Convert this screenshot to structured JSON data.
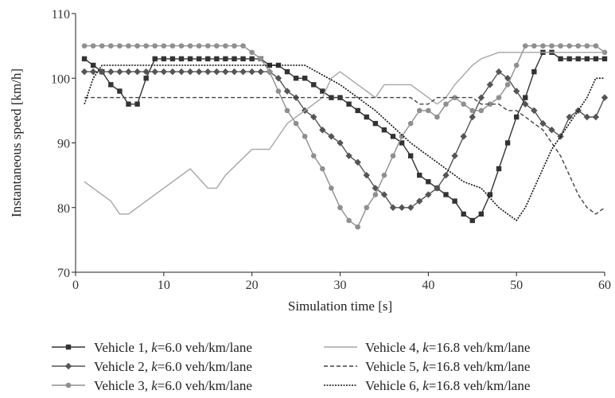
{
  "chart_data": {
    "type": "line",
    "xlabel": "Simulation time [s]",
    "ylabel": "Instantaneous speed [km/h]",
    "xlim": [
      0,
      60
    ],
    "ylim": [
      70,
      110
    ],
    "xticks": [
      0,
      10,
      20,
      30,
      40,
      50,
      60
    ],
    "yticks": [
      70,
      80,
      90,
      100,
      110
    ],
    "grid": false,
    "legend_position": "bottom",
    "series": [
      {
        "name": "Vehicle 1, ",
        "name_k": "k",
        "name_rest": "=6.0 veh/km/lane",
        "color": "#333333",
        "marker": "square",
        "dash": "solid",
        "x": [
          1,
          2,
          3,
          4,
          5,
          6,
          7,
          8,
          9,
          10,
          11,
          12,
          13,
          14,
          15,
          16,
          17,
          18,
          19,
          20,
          21,
          22,
          23,
          24,
          25,
          26,
          27,
          28,
          29,
          30,
          31,
          32,
          33,
          34,
          35,
          36,
          37,
          38,
          39,
          40,
          41,
          42,
          43,
          44,
          45,
          46,
          47,
          48,
          49,
          50,
          51,
          52,
          53,
          54,
          55,
          56,
          57,
          58,
          59,
          60
        ],
        "y": [
          103,
          102,
          101,
          99,
          98,
          96,
          96,
          100,
          103,
          103,
          103,
          103,
          103,
          103,
          103,
          103,
          103,
          103,
          103,
          103,
          103,
          102,
          102,
          101,
          100,
          100,
          99,
          98,
          97,
          97,
          96,
          95,
          94,
          93,
          92,
          91,
          90,
          88,
          85,
          84,
          83,
          82,
          81,
          79,
          78,
          79,
          82,
          86,
          90,
          94,
          97,
          101,
          104,
          104,
          103,
          103,
          103,
          103,
          103,
          103
        ]
      },
      {
        "name": "Vehicle 2, ",
        "name_k": "k",
        "name_rest": "=6.0 veh/km/lane",
        "color": "#555555",
        "marker": "diamond",
        "dash": "solid",
        "x": [
          1,
          2,
          3,
          4,
          5,
          6,
          7,
          8,
          9,
          10,
          11,
          12,
          13,
          14,
          15,
          16,
          17,
          18,
          19,
          20,
          21,
          22,
          23,
          24,
          25,
          26,
          27,
          28,
          29,
          30,
          31,
          32,
          33,
          34,
          35,
          36,
          37,
          38,
          39,
          40,
          41,
          42,
          43,
          44,
          45,
          46,
          47,
          48,
          49,
          50,
          51,
          52,
          53,
          54,
          55,
          56,
          57,
          58,
          59,
          60
        ],
        "y": [
          101,
          101,
          101,
          101,
          101,
          101,
          101,
          101,
          101,
          101,
          101,
          101,
          101,
          101,
          101,
          101,
          101,
          101,
          101,
          101,
          101,
          101,
          100,
          98,
          97,
          95,
          94,
          92,
          91,
          90,
          88,
          87,
          85,
          83,
          82,
          80,
          80,
          80,
          81,
          82,
          83,
          85,
          88,
          91,
          94,
          97,
          99,
          101,
          100,
          98,
          96,
          95,
          93,
          92,
          91,
          94,
          95,
          94,
          94,
          97
        ]
      },
      {
        "name": "Vehicle 3, ",
        "name_k": "k",
        "name_rest": "=6.0 veh/km/lane",
        "color": "#8f8f8f",
        "marker": "circle",
        "dash": "solid",
        "x": [
          1,
          2,
          3,
          4,
          5,
          6,
          7,
          8,
          9,
          10,
          11,
          12,
          13,
          14,
          15,
          16,
          17,
          18,
          19,
          20,
          21,
          22,
          23,
          24,
          25,
          26,
          27,
          28,
          29,
          30,
          31,
          32,
          33,
          34,
          35,
          36,
          37,
          38,
          39,
          40,
          41,
          42,
          43,
          44,
          45,
          46,
          47,
          48,
          49,
          50,
          51,
          52,
          53,
          54,
          55,
          56,
          57,
          58,
          59,
          60
        ],
        "y": [
          105,
          105,
          105,
          105,
          105,
          105,
          105,
          105,
          105,
          105,
          105,
          105,
          105,
          105,
          105,
          105,
          105,
          105,
          105,
          104,
          103,
          101,
          98,
          95,
          93,
          91,
          88,
          86,
          83,
          80,
          78,
          77,
          80,
          82,
          85,
          88,
          91,
          93,
          95,
          95,
          94,
          96,
          97,
          96,
          95,
          95,
          96,
          97,
          99,
          102,
          105,
          105,
          105,
          105,
          105,
          105,
          105,
          105,
          105,
          104
        ]
      },
      {
        "name": "Vehicle 4, ",
        "name_k": "k",
        "name_rest": "=16.8 veh/km/lane",
        "color": "#a6a6a6",
        "marker": "none",
        "dash": "solid",
        "x": [
          1,
          4,
          5,
          6,
          13,
          15,
          16,
          17,
          20,
          21,
          22,
          24,
          26,
          28,
          29,
          30,
          31,
          32,
          33,
          34,
          35,
          37,
          38,
          40,
          41,
          42,
          43,
          45,
          46,
          48,
          50,
          53,
          60
        ],
        "y": [
          84,
          81,
          79,
          79,
          86,
          83,
          83,
          85,
          89,
          89,
          89,
          93,
          95,
          97,
          100,
          101,
          100,
          99,
          98,
          97,
          99,
          99,
          99,
          97,
          96,
          97,
          99,
          102,
          103,
          104,
          104,
          104,
          104
        ]
      },
      {
        "name": "Vehicle 5, ",
        "name_k": "k",
        "name_rest": "=16.8 veh/km/lane",
        "color": "#444444",
        "marker": "none",
        "dash": "dashed",
        "x": [
          1,
          2,
          10,
          20,
          30,
          38,
          39,
          40,
          41,
          42,
          43,
          44,
          45,
          46,
          47,
          48,
          49,
          50,
          51,
          52,
          53,
          54,
          55,
          56,
          57,
          58,
          59,
          60
        ],
        "y": [
          97,
          97,
          97,
          97,
          97,
          97,
          96,
          96,
          97,
          97,
          97,
          97,
          97,
          96,
          96,
          96,
          95,
          95,
          94,
          93,
          92,
          90,
          88,
          85,
          82,
          80,
          79,
          80
        ]
      },
      {
        "name": "Vehicle 6, ",
        "name_k": "k",
        "name_rest": "=16.8 veh/km/lane",
        "color": "#111111",
        "marker": "none",
        "dash": "dotted",
        "x": [
          1,
          2,
          3,
          10,
          20,
          26,
          30,
          34,
          38,
          40,
          42,
          44,
          46,
          48,
          50,
          51,
          52,
          53,
          54,
          55,
          56,
          57,
          58,
          59,
          60
        ],
        "y": [
          96,
          100,
          102,
          102,
          102,
          102,
          99,
          95,
          90,
          88,
          86,
          84,
          83,
          80,
          78,
          80,
          83,
          86,
          89,
          91,
          93,
          95,
          97,
          100,
          100
        ]
      }
    ]
  }
}
